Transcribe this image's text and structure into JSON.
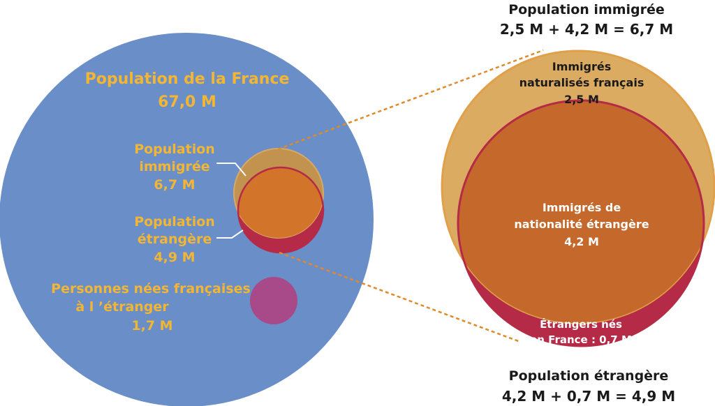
{
  "colors": {
    "france": "#6a8ec7",
    "immigres_naturalises": "#dcab62",
    "immigres_etrangers": "#c4682c",
    "etrangers_nes_france": "#b52a46",
    "nes_francais_etranger": "#a84a8a",
    "label_gold": "#f2b634",
    "connector": "#e08a2a"
  },
  "left": {
    "france_title": "Population de la France",
    "france_value": "67,0 M",
    "immigree_line1": "Population",
    "immigree_line2": "immigrée",
    "immigree_value": "6,7 M",
    "etrangere_line1": "Population",
    "etrangere_line2": "étrangère",
    "etrangere_value": "4,9 M",
    "nes_line1": "Personnes nées françaises",
    "nes_line2": "à l ’étranger",
    "nes_value": "1,7 M"
  },
  "right": {
    "top_title": "Population immigrée",
    "top_formula": "2,5 M + 4,2 M = 6,7 M",
    "naturalises_line1": "Immigrés",
    "naturalises_line2": "naturalisés français",
    "naturalises_value": "2,5 M",
    "etrangers_line1": "Immigrés de",
    "etrangers_line2": "nationalité étrangère",
    "etrangers_value": "4,2 M",
    "nes_france_line1": "Étrangers nés",
    "nes_france_line2": "en France : 0,7 M",
    "bottom_title": "Population étrangère",
    "bottom_formula": "4,2 M + 0,7 M = 4,9 M"
  }
}
